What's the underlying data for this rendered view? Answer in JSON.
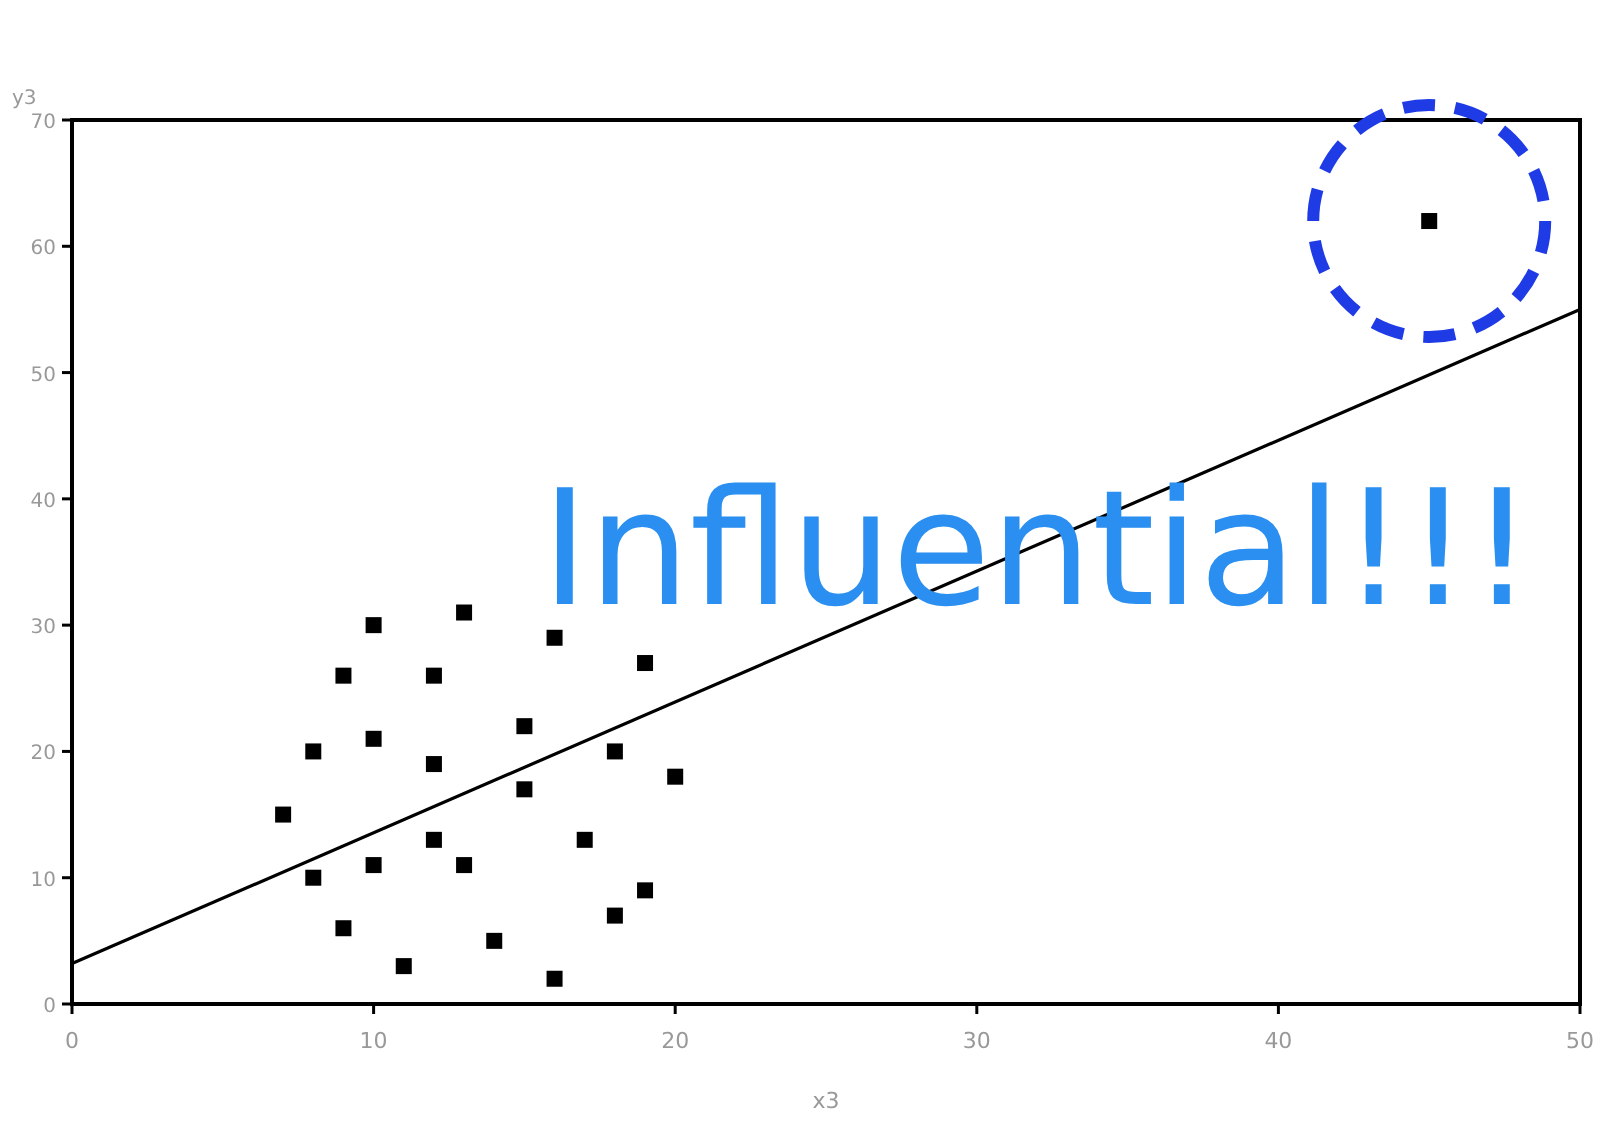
{
  "chart_data": {
    "type": "scatter",
    "xlabel": "x3",
    "ylabel": "y3",
    "xlim": [
      0,
      50
    ],
    "ylim": [
      0,
      70
    ],
    "xticks": [
      0,
      10,
      20,
      30,
      40,
      50
    ],
    "yticks": [
      0,
      10,
      20,
      30,
      40,
      50,
      60,
      70
    ],
    "grid": false,
    "marker": "square",
    "annotations": [
      "Influential!!!"
    ],
    "series": [
      {
        "color": "#000000",
        "x": [
          7,
          8,
          8,
          9,
          9,
          10,
          10,
          10,
          11,
          12,
          12,
          12,
          13,
          13,
          14,
          15,
          15,
          16,
          16,
          17,
          18,
          18,
          19,
          19,
          20,
          45
        ],
        "values": [
          15,
          10,
          20,
          26,
          6,
          30,
          21,
          11,
          3,
          26,
          19,
          13,
          31,
          11,
          5,
          22,
          17,
          29,
          2,
          13,
          20,
          7,
          27,
          9,
          18,
          62
        ]
      },
      {
        "type": "line",
        "color": "#000000",
        "line_style": "solid",
        "marker": "none",
        "x": [
          0,
          50
        ],
        "values": [
          3.2,
          55
        ]
      }
    ]
  }
}
